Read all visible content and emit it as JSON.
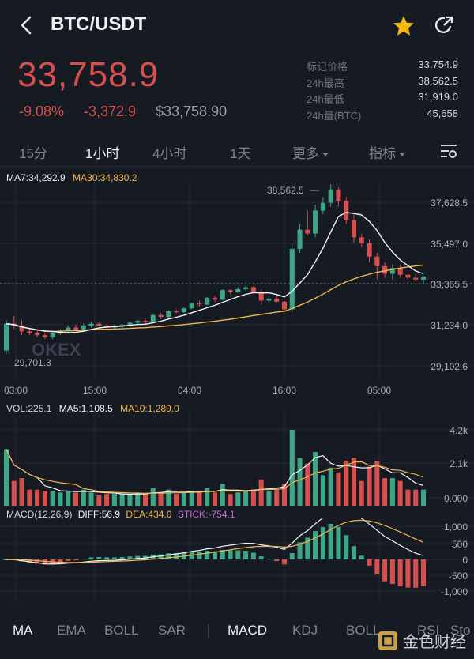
{
  "header": {
    "pair": "BTC/USDT",
    "back_icon": "back-arrow-icon",
    "star_icon": "star-icon",
    "share_icon": "share-icon",
    "star_color": "#f0b90b"
  },
  "ticker": {
    "price": "33,758.9",
    "change_pct": "-9.08%",
    "change_abs": "-3,372.9",
    "usd_price": "$33,758.90",
    "down_color": "#d6504e"
  },
  "stats": [
    {
      "label": "标记价格",
      "value": "33,754.9"
    },
    {
      "label": "24h最高",
      "value": "38,562.5"
    },
    {
      "label": "24h最低",
      "value": "31,919.0"
    },
    {
      "label": "24h量(BTC)",
      "value": "45,658"
    }
  ],
  "tabs": {
    "t15": "15分",
    "t1h": "1小时",
    "t4h": "4小时",
    "t1d": "1天",
    "more": "更多",
    "indicator": "指标",
    "settings_icon": "chart-settings-icon"
  },
  "main_chart": {
    "ma7_label": "MA7:34,292.9",
    "ma30_label": "MA30:34,830.2",
    "y_ticks": [
      "37,628.5",
      "35,497.0",
      "33,365.5",
      "31,234.0",
      "29,102.6"
    ],
    "high_marker": "38,562.5",
    "low_marker": "29,701.3",
    "x_ticks": [
      "03:00",
      "15:00",
      "04:00",
      "16:00",
      "05:00"
    ],
    "watermark": "OKEX"
  },
  "volume_chart": {
    "vol_label": "VOL:225.1",
    "ma5_label": "MA5:1,108.5",
    "ma10_label": "MA10:1,289.0",
    "y_ticks": [
      "4.2k",
      "2.1k",
      "0.000"
    ]
  },
  "macd_chart": {
    "macd_label": "MACD(12,26,9)",
    "diff_label": "DIFF:56.9",
    "dea_label": "DEA:434.0",
    "stick_label": "STICK:-754.1",
    "y_ticks": [
      "1,000",
      "500",
      "0",
      "-500",
      "-1,000"
    ]
  },
  "bottom_tabs": {
    "ma": "MA",
    "ema": "EMA",
    "boll": "BOLL",
    "sar": "SAR",
    "macd": "MACD",
    "kdj": "KDJ",
    "boll2": "BOLL",
    "rsi": "RSI",
    "sto": "Sto"
  },
  "source_watermark": "金色财经",
  "chart_data": {
    "type": "candlestick",
    "ohlc": [
      [
        29900,
        31500,
        29701.3,
        31300
      ],
      [
        31300,
        31700,
        31000,
        31200
      ],
      [
        31200,
        31500,
        30700,
        30900
      ],
      [
        30900,
        31100,
        30700,
        30800
      ],
      [
        30800,
        31000,
        30600,
        30700
      ],
      [
        30700,
        30850,
        30500,
        30600
      ],
      [
        30600,
        30850,
        30500,
        30800
      ],
      [
        30800,
        31000,
        30700,
        30950
      ],
      [
        30950,
        31200,
        30850,
        31100
      ],
      [
        31100,
        31250,
        30950,
        31000
      ],
      [
        31000,
        31300,
        30900,
        31200
      ],
      [
        31200,
        31400,
        31100,
        31300
      ],
      [
        31300,
        31350,
        31150,
        31200
      ],
      [
        31200,
        31300,
        31050,
        31100
      ],
      [
        31100,
        31250,
        31000,
        31150
      ],
      [
        31150,
        31300,
        31050,
        31250
      ],
      [
        31250,
        31400,
        31150,
        31350
      ],
      [
        31350,
        31500,
        31250,
        31450
      ],
      [
        31450,
        31550,
        31300,
        31400
      ],
      [
        31400,
        31800,
        31350,
        31750
      ],
      [
        31750,
        31850,
        31550,
        31650
      ],
      [
        31650,
        32000,
        31600,
        31950
      ],
      [
        31950,
        32050,
        31800,
        31900
      ],
      [
        31900,
        32150,
        31850,
        32100
      ],
      [
        32100,
        32400,
        32050,
        32350
      ],
      [
        32350,
        32500,
        32200,
        32300
      ],
      [
        32300,
        32700,
        32250,
        32650
      ],
      [
        32650,
        32750,
        32450,
        32550
      ],
      [
        32550,
        33100,
        32500,
        33050
      ],
      [
        33050,
        33100,
        32850,
        32950
      ],
      [
        32950,
        33200,
        32900,
        33100
      ],
      [
        33100,
        33300,
        32950,
        33200
      ],
      [
        33200,
        33250,
        32850,
        32950
      ],
      [
        32950,
        33050,
        32300,
        32500
      ],
      [
        32500,
        32700,
        32350,
        32600
      ],
      [
        32600,
        32800,
        32400,
        32450
      ],
      [
        32450,
        32500,
        31900,
        32050
      ],
      [
        32050,
        35500,
        31919.0,
        35200
      ],
      [
        35200,
        36500,
        35000,
        36200
      ],
      [
        36200,
        37200,
        35900,
        36000
      ],
      [
        36000,
        37500,
        35800,
        37200
      ],
      [
        37200,
        37900,
        37000,
        37600
      ],
      [
        37600,
        38562.5,
        37400,
        38300
      ],
      [
        38300,
        38400,
        37400,
        37700
      ],
      [
        37700,
        37900,
        36500,
        36700
      ],
      [
        36700,
        37000,
        35500,
        35800
      ],
      [
        35800,
        36000,
        35300,
        35500
      ],
      [
        35500,
        35700,
        34500,
        34800
      ],
      [
        34800,
        35000,
        33600,
        34300
      ],
      [
        34300,
        34500,
        33700,
        33900
      ],
      [
        33900,
        34400,
        33600,
        34200
      ],
      [
        34200,
        34400,
        33700,
        33850
      ],
      [
        33850,
        34000,
        33600,
        33700
      ],
      [
        33700,
        33900,
        33500,
        33600
      ],
      [
        33600,
        33800,
        33400,
        33758.9
      ]
    ]
  }
}
